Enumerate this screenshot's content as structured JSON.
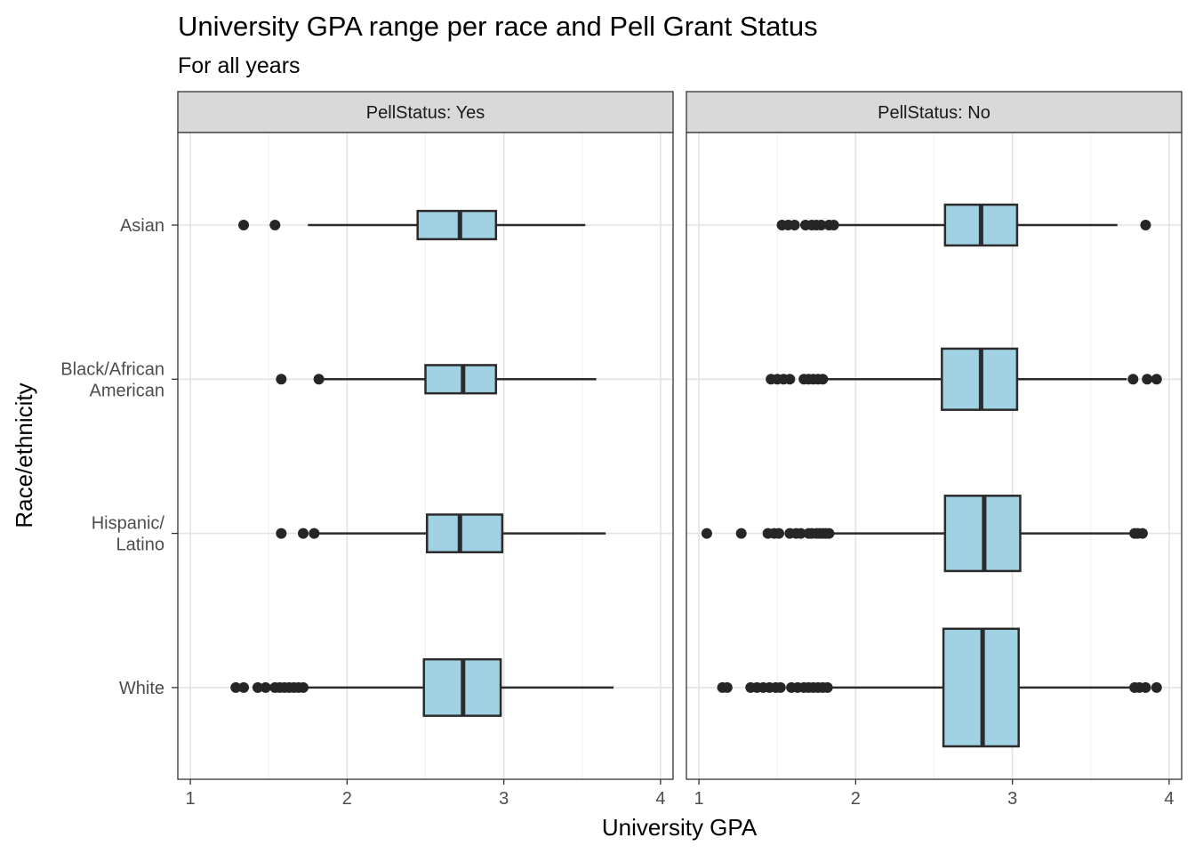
{
  "chart_data": {
    "type": "boxplot",
    "title": "University GPA range per race and Pell Grant Status",
    "subtitle": "For all years",
    "xlabel": "University GPA",
    "ylabel": "Race/ethnicity",
    "xlim": [
      0.92,
      4.08
    ],
    "xticks": [
      1,
      2,
      3,
      4
    ],
    "grid": true,
    "categories": [
      "Asian",
      "Black/African\nAmerican",
      "Hispanic/\nLatino",
      "White"
    ],
    "box_fill": "#a1d2e3",
    "box_stroke": "#2b2b2b",
    "facets": [
      {
        "strip": "PellStatus: Yes",
        "boxes": [
          {
            "category": "Asian",
            "q1": 2.45,
            "median": 2.72,
            "q3": 2.95,
            "whisker_low": 1.75,
            "whisker_high": 3.52,
            "outliers": [
              1.34,
              1.54
            ],
            "width": 0.18
          },
          {
            "category": "Black/African\nAmerican",
            "q1": 2.5,
            "median": 2.74,
            "q3": 2.95,
            "whisker_low": 1.84,
            "whisker_high": 3.59,
            "outliers": [
              1.58,
              1.82
            ],
            "width": 0.18
          },
          {
            "category": "Hispanic/\nLatino",
            "q1": 2.51,
            "median": 2.72,
            "q3": 2.99,
            "whisker_low": 1.82,
            "whisker_high": 3.65,
            "outliers": [
              1.58,
              1.72,
              1.79
            ],
            "width": 0.24
          },
          {
            "category": "White",
            "q1": 2.49,
            "median": 2.74,
            "q3": 2.98,
            "whisker_low": 1.75,
            "whisker_high": 3.7,
            "outliers": [
              1.29,
              1.34,
              1.43,
              1.48,
              1.54,
              1.57,
              1.6,
              1.63,
              1.66,
              1.69,
              1.72
            ],
            "width": 0.36
          }
        ]
      },
      {
        "strip": "PellStatus: No",
        "boxes": [
          {
            "category": "Asian",
            "q1": 2.57,
            "median": 2.8,
            "q3": 3.03,
            "whisker_low": 1.88,
            "whisker_high": 3.67,
            "outliers": [
              1.53,
              1.57,
              1.61,
              1.68,
              1.72,
              1.75,
              1.78,
              1.83,
              1.86,
              3.85
            ],
            "width": 0.26
          },
          {
            "category": "Black/African\nAmerican",
            "q1": 2.55,
            "median": 2.8,
            "q3": 3.03,
            "whisker_low": 1.82,
            "whisker_high": 3.73,
            "outliers": [
              1.46,
              1.5,
              1.54,
              1.58,
              1.67,
              1.7,
              1.73,
              1.76,
              1.79,
              3.77,
              3.86,
              3.92
            ],
            "width": 0.39
          },
          {
            "category": "Hispanic/\nLatino",
            "q1": 2.57,
            "median": 2.82,
            "q3": 3.05,
            "whisker_low": 1.86,
            "whisker_high": 3.75,
            "outliers": [
              1.05,
              1.27,
              1.44,
              1.48,
              1.51,
              1.58,
              1.62,
              1.65,
              1.7,
              1.72,
              1.75,
              1.77,
              1.79,
              1.81,
              1.83,
              3.78,
              3.8,
              3.83
            ],
            "width": 0.48
          },
          {
            "category": "White",
            "q1": 2.56,
            "median": 2.81,
            "q3": 3.04,
            "whisker_low": 1.85,
            "whisker_high": 3.77,
            "outliers": [
              1.15,
              1.18,
              1.33,
              1.37,
              1.41,
              1.45,
              1.49,
              1.52,
              1.59,
              1.63,
              1.67,
              1.7,
              1.73,
              1.76,
              1.79,
              1.82,
              3.78,
              3.81,
              3.85,
              3.92
            ],
            "width": 0.75
          }
        ]
      }
    ]
  }
}
